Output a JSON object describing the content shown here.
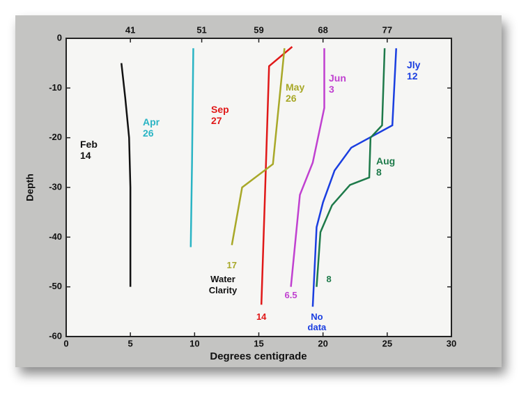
{
  "chart_data": {
    "type": "line",
    "xlabel": "Degrees centigrade",
    "ylabel": "Depth",
    "clarity_title": "Water Clarity",
    "xlim": [
      0,
      30
    ],
    "xticks": [
      0,
      5,
      10,
      15,
      20,
      25,
      30
    ],
    "ylim": [
      -60,
      0
    ],
    "yticks": [
      0,
      -10,
      -20,
      -30,
      -40,
      -50,
      -60
    ],
    "x2lim": [
      32,
      86
    ],
    "x2ticks": [
      41,
      51,
      59,
      68,
      77
    ],
    "series": [
      {
        "name": "Feb 14",
        "color": "#111111",
        "x": [
          4.3,
          4.6,
          4.9,
          5.0,
          5.0
        ],
        "values": [
          -5,
          -12,
          -20,
          -30,
          -50
        ]
      },
      {
        "name": "Apr 26",
        "color": "#2ab4c4",
        "x": [
          9.9,
          9.8,
          9.7
        ],
        "values": [
          -2,
          -25,
          -42
        ]
      },
      {
        "name": "Sep 27",
        "color": "#e01818",
        "x": [
          17.6,
          15.8,
          15.5,
          15.2
        ],
        "values": [
          -1.7,
          -5.6,
          -30,
          -53.6
        ],
        "clarity": 14
      },
      {
        "name": "May 26",
        "color": "#a8a828",
        "x": [
          17.0,
          16.1,
          13.7,
          12.9
        ],
        "values": [
          -2,
          -25.3,
          -30,
          -41.6
        ],
        "clarity": 17
      },
      {
        "name": "Jun 3",
        "color": "#c040d0",
        "x": [
          20.1,
          20.1,
          19.2,
          18.2,
          17.5
        ],
        "values": [
          -2,
          -14,
          -25,
          -31.5,
          -50
        ],
        "clarity": 6.5
      },
      {
        "name": "Jly 12",
        "color": "#1a3ee0",
        "x": [
          25.7,
          25.4,
          22.2,
          20.9,
          20.0,
          19.5,
          19.2
        ],
        "values": [
          -2,
          -17.5,
          -22,
          -26.6,
          -33,
          -38,
          -54
        ],
        "clarity": "No data"
      },
      {
        "name": "Aug 8",
        "color": "#1e7a4a",
        "x": [
          24.8,
          24.6,
          23.7,
          23.6,
          22.1,
          20.7,
          19.8,
          19.5
        ],
        "values": [
          -2,
          -17.5,
          -20,
          -28,
          -29.5,
          -33.6,
          -39,
          -50
        ],
        "clarity": 8
      }
    ]
  }
}
